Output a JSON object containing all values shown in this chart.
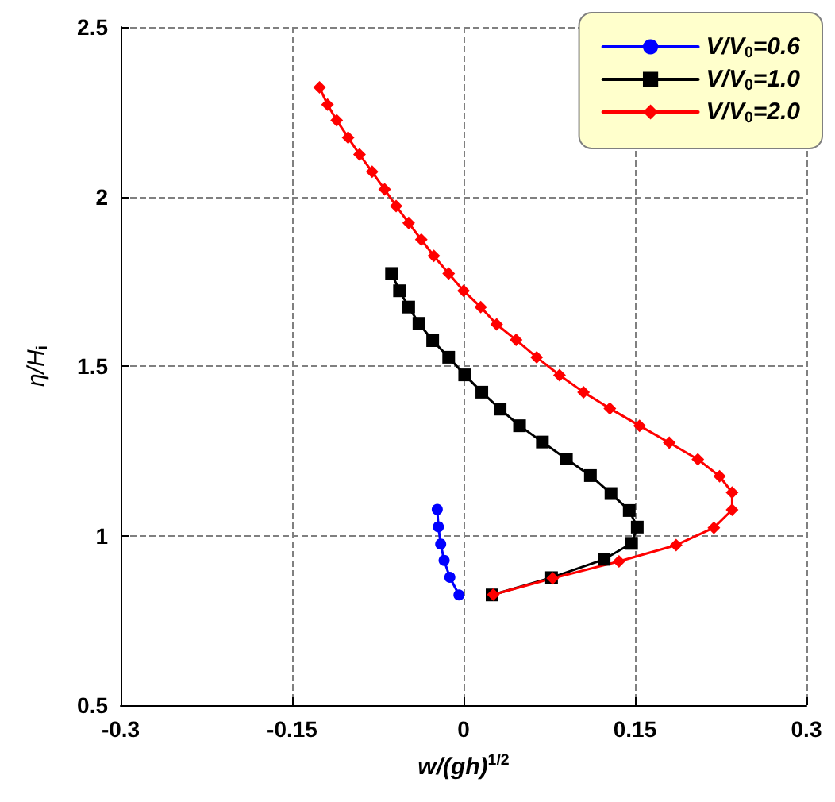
{
  "chart_data": {
    "type": "line",
    "xlabel": "w/(gh)$^{1/2}$",
    "ylabel": "η/H$_{i}$",
    "xlim": [
      -0.3,
      0.3
    ],
    "xticks": [
      -0.3,
      -0.15,
      0,
      0.15,
      0.3
    ],
    "ylim": [
      0.5,
      2.5
    ],
    "yticks": [
      0.5,
      1,
      1.5,
      2,
      2.5
    ],
    "grid": true,
    "legend": "top right",
    "line_style": "solid",
    "series": [
      {
        "name": "V/V$_{0}$=0.6",
        "color": "#0000ff",
        "marker": "circle",
        "x": [
          -0.023,
          -0.022,
          -0.02,
          -0.017,
          -0.012,
          -0.004
        ],
        "values": [
          1.077,
          1.026,
          0.975,
          0.927,
          0.877,
          0.825
        ]
      },
      {
        "name": "V/V$_{0}$=1.0",
        "color": "#000000",
        "marker": "square",
        "x": [
          -0.063,
          -0.056,
          -0.048,
          -0.039,
          -0.027,
          -0.013,
          0.001,
          0.016,
          0.032,
          0.049,
          0.069,
          0.09,
          0.111,
          0.129,
          0.145,
          0.152,
          0.147,
          0.123,
          0.077,
          0.025
        ],
        "values": [
          1.773,
          1.722,
          1.674,
          1.626,
          1.575,
          1.526,
          1.474,
          1.423,
          1.373,
          1.324,
          1.276,
          1.226,
          1.177,
          1.124,
          1.074,
          1.025,
          0.977,
          0.93,
          0.876,
          0.825
        ]
      },
      {
        "name": "V/V$_{0}$=2.0",
        "color": "#ff0000",
        "marker": "diamond",
        "x": [
          -0.126,
          -0.119,
          -0.111,
          -0.101,
          -0.091,
          -0.08,
          -0.069,
          -0.059,
          -0.048,
          -0.037,
          -0.026,
          -0.013,
          0.0,
          0.015,
          0.029,
          0.046,
          0.064,
          0.084,
          0.105,
          0.128,
          0.154,
          0.18,
          0.205,
          0.224,
          0.235,
          0.235,
          0.219,
          0.186,
          0.136,
          0.078,
          0.026
        ],
        "values": [
          2.322,
          2.271,
          2.225,
          2.174,
          2.124,
          2.073,
          2.021,
          1.972,
          1.922,
          1.873,
          1.825,
          1.773,
          1.722,
          1.674,
          1.623,
          1.577,
          1.526,
          1.473,
          1.423,
          1.375,
          1.324,
          1.274,
          1.225,
          1.175,
          1.127,
          1.076,
          1.023,
          0.972,
          0.924,
          0.874,
          0.826
        ]
      }
    ]
  }
}
